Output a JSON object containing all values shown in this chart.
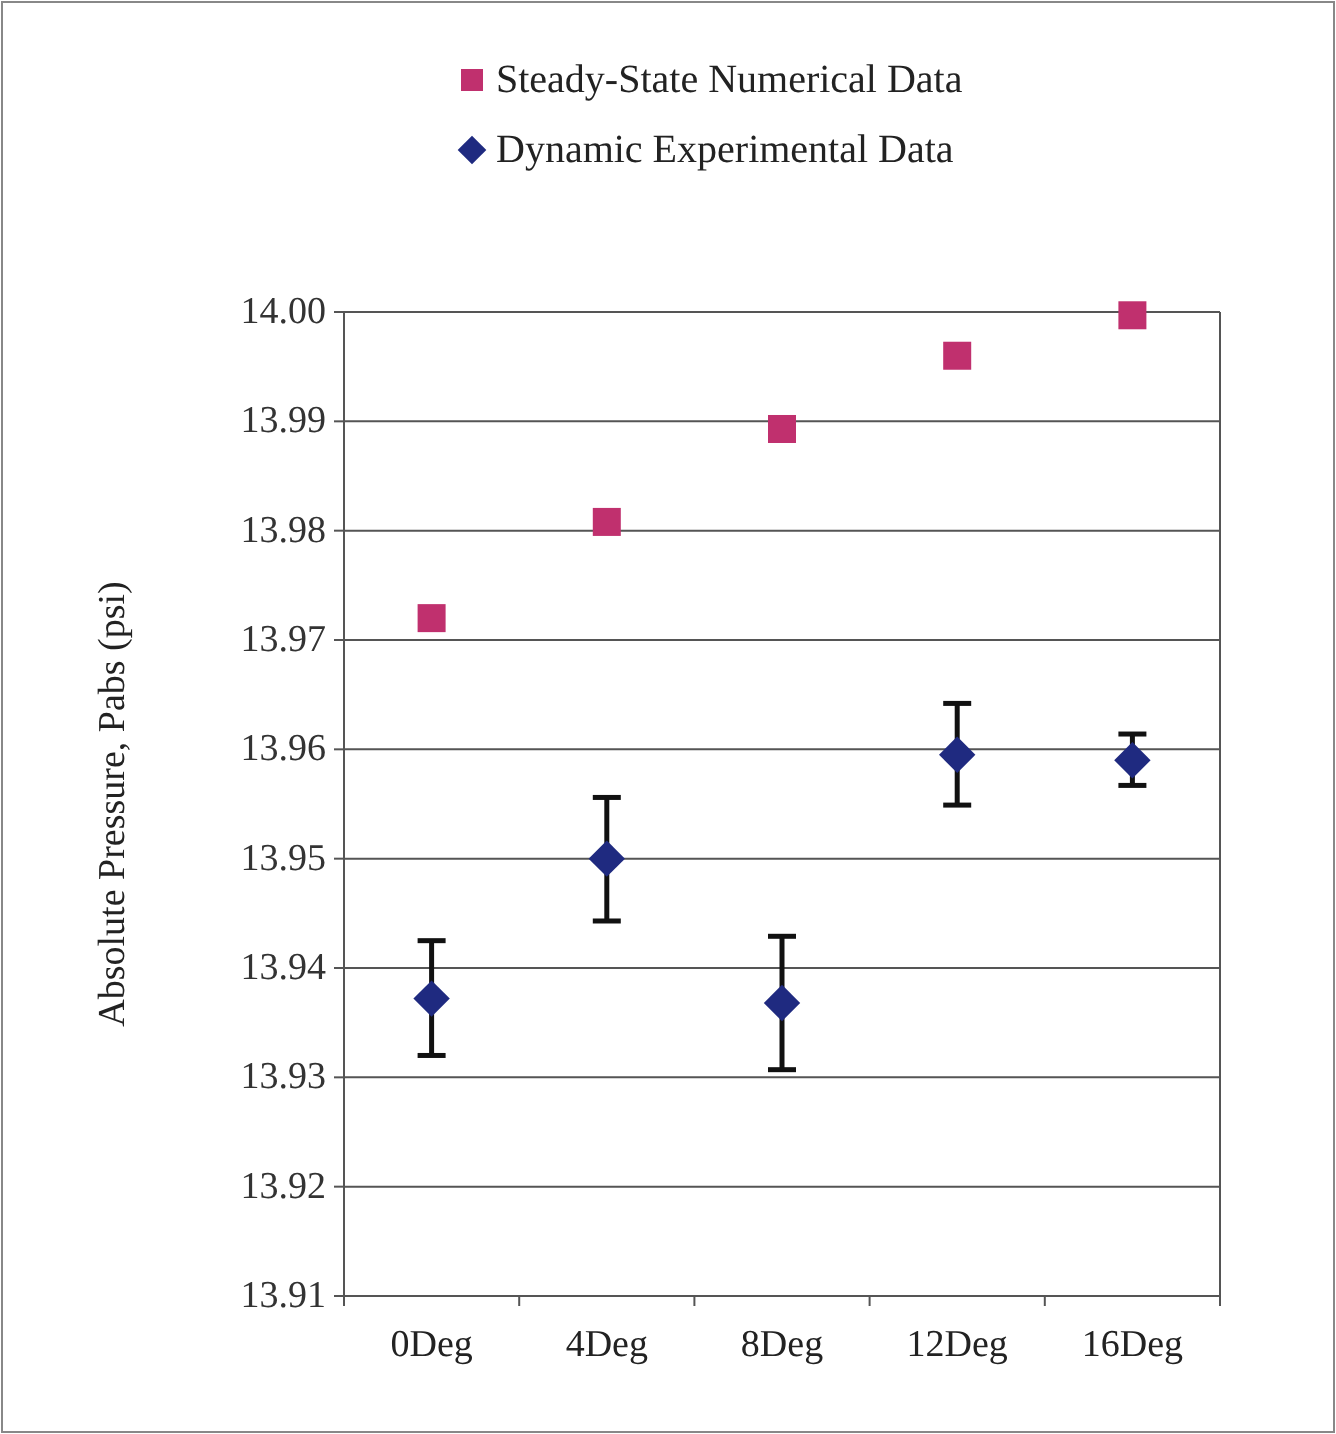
{
  "chart_data": {
    "type": "scatter",
    "ylabel": "Absolute Pressure, Pabs (psi)",
    "categories": [
      "0Deg",
      "4Deg",
      "8Deg",
      "12Deg",
      "16Deg"
    ],
    "series": [
      {
        "name": "Steady-State Numerical Data",
        "color": "#c0306e",
        "marker": "square",
        "values": [
          13.972,
          13.9808,
          13.9893,
          13.996,
          13.9997
        ]
      },
      {
        "name": "Dynamic Experimental Data",
        "color": "#1f2a80",
        "marker": "diamond",
        "values": [
          13.9372,
          13.95,
          13.9368,
          13.9595,
          13.959
        ],
        "errors": [
          [
            13.932,
            13.9425
          ],
          [
            13.9443,
            13.9556
          ],
          [
            13.9307,
            13.9429
          ],
          [
            13.9549,
            13.9642
          ],
          [
            13.9567,
            13.9614
          ]
        ]
      }
    ],
    "ylim": [
      13.91,
      14.0
    ],
    "yticks": [
      13.91,
      13.92,
      13.93,
      13.94,
      13.95,
      13.96,
      13.97,
      13.98,
      13.99,
      {
        "value": 14.0,
        "label": "14.00"
      }
    ],
    "grid": "y",
    "legend": "top"
  }
}
